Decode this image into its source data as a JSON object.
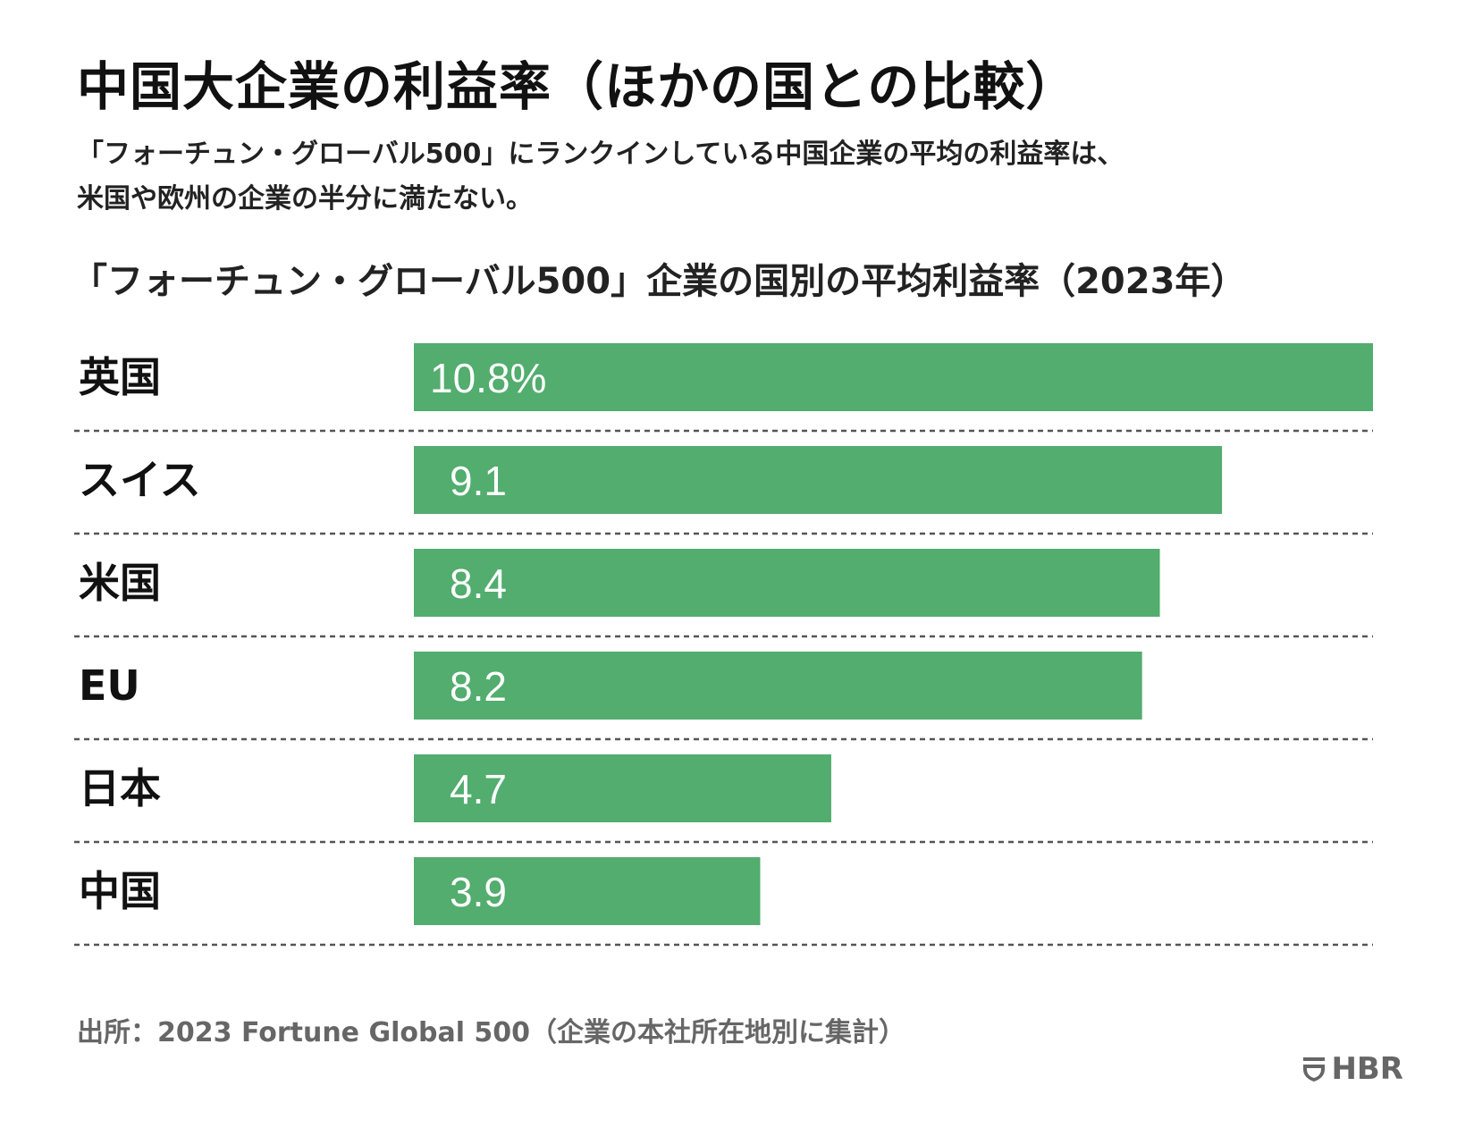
{
  "header": {
    "title": "中国大企業の利益率（ほかの国との比較）",
    "subtitle_lines": [
      "「フォーチュン・グローバル500」にランクインしている中国企業の平均の利益率は、",
      "米国や欧州の企業の半分に満たない。"
    ]
  },
  "chart_data": {
    "type": "bar",
    "orientation": "horizontal",
    "title": "「フォーチュン・グローバル500」企業の国別の平均利益率（2023年）",
    "categories": [
      "英国",
      "スイス",
      "米国",
      "EU",
      "日本",
      "中国"
    ],
    "values": [
      10.8,
      9.1,
      8.4,
      8.2,
      4.7,
      3.9
    ],
    "data_labels": [
      "10.8%",
      "9.1",
      "8.4",
      "8.2",
      "4.7",
      "3.9"
    ],
    "unit": "%",
    "xlim": [
      0,
      10.8
    ],
    "bar_color": "#52ad6e",
    "label_color": "#ffffff",
    "grid": false,
    "separators": "dashed"
  },
  "footer": {
    "source": "出所：2023 Fortune Global 500（企業の本社所在地別に集計）",
    "brand": "HBR"
  },
  "colors": {
    "text": "#111111",
    "muted": "#666666",
    "separator": "#555555"
  }
}
